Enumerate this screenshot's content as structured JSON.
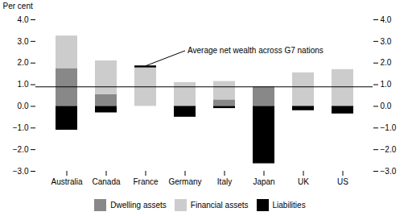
{
  "chart_data": {
    "type": "bar",
    "stacked": true,
    "categories": [
      "Australia",
      "Canada",
      "France",
      "Germany",
      "Italy",
      "Japan",
      "UK",
      "US"
    ],
    "series": [
      {
        "name": "Dwelling assets",
        "color": "#888888",
        "values": [
          1.75,
          0.55,
          0.0,
          0.0,
          0.3,
          0.9,
          0.0,
          0.0
        ]
      },
      {
        "name": "Financial assets",
        "color": "#cccccc",
        "values": [
          1.5,
          1.55,
          1.8,
          1.1,
          0.85,
          0.0,
          1.55,
          1.7
        ]
      },
      {
        "name": "Liabilities",
        "color": "#000000",
        "values": [
          -1.1,
          -0.3,
          0.0,
          -0.5,
          -0.1,
          -2.65,
          -0.2,
          -0.35
        ]
      }
    ],
    "highlight": {
      "category": "France",
      "bottom": 1.78,
      "height": 0.09,
      "color": "#000000"
    },
    "average_net_wealth": 0.9,
    "annotation": {
      "text": "Average net wealth across G7 nations",
      "category": "France",
      "y": 1.87
    },
    "ylabel": "Per cent",
    "y2label": "Per cent",
    "ylim": [
      -3,
      4
    ],
    "yticks": [
      -3,
      -2,
      -1,
      0,
      1,
      2,
      3,
      4
    ],
    "y2lim": [
      -3,
      4
    ],
    "y2ticks": [
      -3,
      -2,
      -1,
      0,
      1,
      2,
      3,
      4
    ],
    "grid": false,
    "legend": "bottom"
  }
}
